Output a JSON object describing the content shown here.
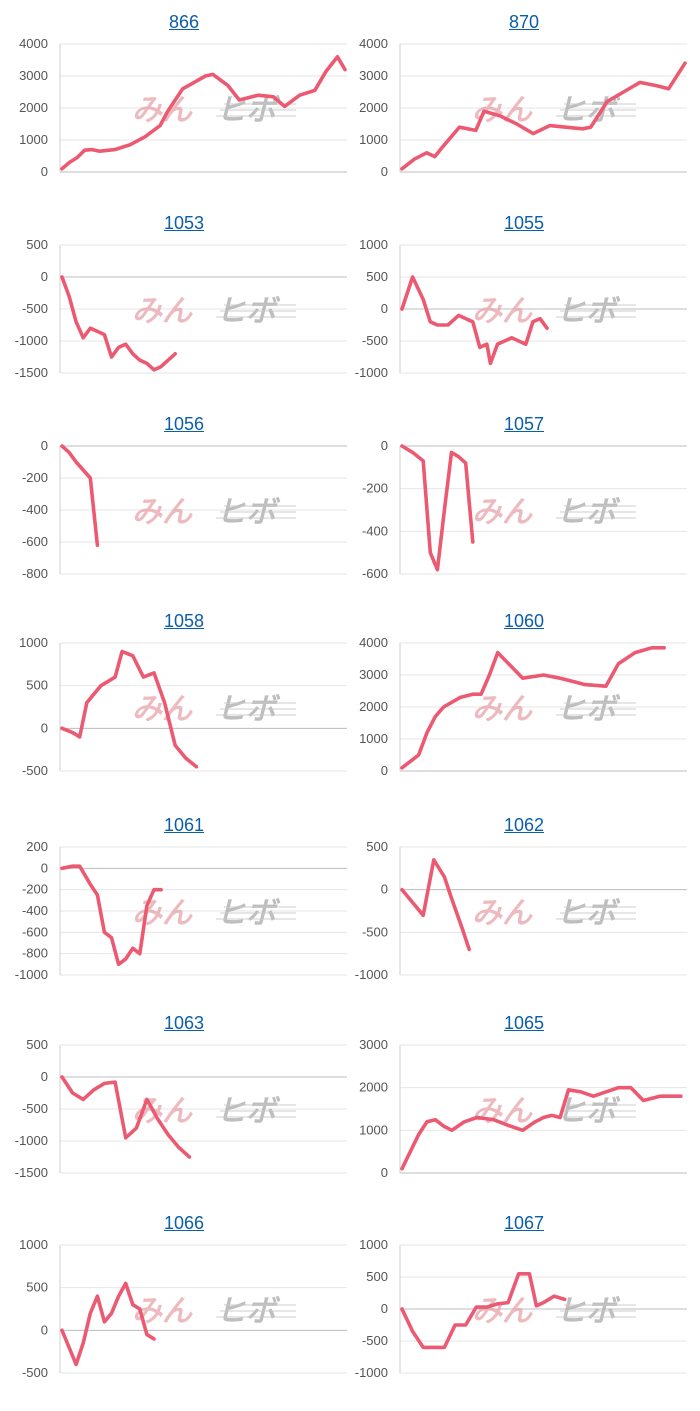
{
  "watermark": {
    "text_a": "みん",
    "text_b": "ヒ",
    "text_c": "ボ",
    "accent_color": "#e7a3aa",
    "gray_color": "#a9a9a9"
  },
  "line_color": "#ec5a72",
  "chart_data": [
    {
      "type": "line",
      "title": "866",
      "yticks": [
        4000,
        3000,
        2000,
        1000,
        0
      ],
      "ylim": [
        0,
        4000
      ],
      "x": [
        0,
        2,
        4,
        6,
        8,
        10,
        14,
        18,
        22,
        26,
        28,
        32,
        35,
        38,
        40,
        44,
        47,
        52,
        56,
        59,
        63,
        67,
        70,
        73,
        75
      ],
      "values": [
        100,
        300,
        450,
        680,
        700,
        650,
        700,
        850,
        1100,
        1450,
        1900,
        2600,
        2800,
        3000,
        3050,
        2700,
        2250,
        2400,
        2350,
        2050,
        2400,
        2550,
        3150,
        3600,
        3200
      ],
      "xmax": 75,
      "xlabel": "",
      "ylabel": ""
    },
    {
      "type": "line",
      "title": "870",
      "yticks": [
        4000,
        3000,
        2000,
        1000,
        0
      ],
      "ylim": [
        0,
        4000
      ],
      "x": [
        0,
        3,
        6,
        8,
        10,
        14,
        18,
        20,
        24,
        28,
        32,
        36,
        40,
        44,
        46,
        50,
        54,
        58,
        62,
        65,
        69
      ],
      "values": [
        100,
        400,
        600,
        480,
        800,
        1400,
        1300,
        1900,
        1750,
        1500,
        1200,
        1450,
        1400,
        1350,
        1400,
        2200,
        2500,
        2800,
        2700,
        2600,
        3400
      ],
      "xmax": 69,
      "xlabel": "",
      "ylabel": ""
    },
    {
      "type": "line",
      "title": "1053",
      "yticks": [
        500,
        0,
        -500,
        -1000,
        -1500
      ],
      "ylim": [
        -1500,
        500
      ],
      "x": [
        0,
        2,
        4,
        6,
        8,
        10,
        12,
        14,
        16,
        18,
        20,
        22,
        24,
        26,
        28,
        30,
        32
      ],
      "values": [
        0,
        -300,
        -700,
        -950,
        -800,
        -850,
        -900,
        -1250,
        -1100,
        -1050,
        -1200,
        -1300,
        -1350,
        -1450,
        -1400,
        -1300,
        -1200
      ],
      "xmax": 80,
      "xlabel": "",
      "ylabel": ""
    },
    {
      "type": "line",
      "title": "1055",
      "yticks": [
        1000,
        500,
        0,
        -500,
        -1000
      ],
      "ylim": [
        -1000,
        1000
      ],
      "x": [
        0,
        3,
        6,
        8,
        10,
        13,
        16,
        18,
        20,
        22,
        24,
        25,
        27,
        29,
        31,
        33,
        35,
        37,
        39,
        41
      ],
      "values": [
        0,
        500,
        150,
        -200,
        -250,
        -250,
        -100,
        -150,
        -200,
        -600,
        -550,
        -850,
        -550,
        -500,
        -450,
        -500,
        -550,
        -200,
        -150,
        -300
      ],
      "xmax": 80,
      "xlabel": "",
      "ylabel": ""
    },
    {
      "type": "line",
      "title": "1056",
      "yticks": [
        0,
        -200,
        -400,
        -600,
        -800
      ],
      "ylim": [
        -800,
        0
      ],
      "x": [
        0,
        2,
        4,
        6,
        8,
        10
      ],
      "values": [
        0,
        -40,
        -100,
        -150,
        -200,
        -620
      ],
      "xmax": 80,
      "xlabel": "",
      "ylabel": ""
    },
    {
      "type": "line",
      "title": "1057",
      "yticks": [
        0,
        -200,
        -400,
        -600
      ],
      "ylim": [
        -600,
        0
      ],
      "x": [
        0,
        3,
        6,
        8,
        10,
        12,
        14,
        16,
        18,
        20
      ],
      "values": [
        0,
        -30,
        -70,
        -500,
        -580,
        -300,
        -30,
        -50,
        -80,
        -450
      ],
      "xmax": 80,
      "xlabel": "",
      "ylabel": ""
    },
    {
      "type": "line",
      "title": "1058",
      "yticks": [
        1000,
        500,
        0,
        -500
      ],
      "ylim": [
        -500,
        1000
      ],
      "x": [
        0,
        3,
        5,
        7,
        9,
        11,
        13,
        15,
        17,
        20,
        23,
        26,
        29,
        32,
        35,
        38
      ],
      "values": [
        0,
        -50,
        -100,
        300,
        400,
        500,
        550,
        600,
        900,
        850,
        600,
        650,
        300,
        -200,
        -350,
        -450
      ],
      "xmax": 80,
      "xlabel": "",
      "ylabel": ""
    },
    {
      "type": "line",
      "title": "1060",
      "yticks": [
        4000,
        3000,
        2000,
        1000,
        0
      ],
      "ylim": [
        0,
        4000
      ],
      "x": [
        0,
        2,
        4,
        6,
        8,
        10,
        12,
        14,
        17,
        19,
        21,
        23,
        26,
        29,
        34,
        38,
        41,
        44,
        49,
        52,
        56,
        60,
        63
      ],
      "values": [
        100,
        300,
        500,
        1200,
        1700,
        2000,
        2150,
        2300,
        2400,
        2400,
        3000,
        3700,
        3300,
        2900,
        3000,
        2900,
        2800,
        2700,
        2650,
        3350,
        3700,
        3850,
        3850
      ],
      "xmax": 68,
      "xlabel": "",
      "ylabel": ""
    },
    {
      "type": "line",
      "title": "1061",
      "yticks": [
        200,
        0,
        -200,
        -400,
        -600,
        -800,
        -1000
      ],
      "ylim": [
        -1000,
        200
      ],
      "x": [
        0,
        3,
        5,
        8,
        10,
        12,
        14,
        16,
        18,
        20,
        22,
        24,
        26,
        28
      ],
      "values": [
        0,
        20,
        20,
        -150,
        -250,
        -600,
        -650,
        -900,
        -850,
        -750,
        -800,
        -350,
        -200,
        -200
      ],
      "xmax": 80,
      "xlabel": "",
      "ylabel": ""
    },
    {
      "type": "line",
      "title": "1062",
      "yticks": [
        500,
        0,
        -500,
        -1000
      ],
      "ylim": [
        -1000,
        500
      ],
      "x": [
        0,
        3,
        6,
        9,
        12,
        14,
        17,
        19
      ],
      "values": [
        0,
        -150,
        -300,
        350,
        150,
        -100,
        -450,
        -700
      ],
      "xmax": 80,
      "xlabel": "",
      "ylabel": ""
    },
    {
      "type": "line",
      "title": "1063",
      "yticks": [
        500,
        0,
        -500,
        -1000,
        -1500
      ],
      "ylim": [
        -1500,
        500
      ],
      "x": [
        0,
        3,
        6,
        9,
        12,
        15,
        18,
        21,
        24,
        27,
        30,
        33,
        36
      ],
      "values": [
        0,
        -250,
        -350,
        -200,
        -100,
        -80,
        -950,
        -800,
        -350,
        -650,
        -900,
        -1100,
        -1250
      ],
      "xmax": 80,
      "xlabel": "",
      "ylabel": ""
    },
    {
      "type": "line",
      "title": "1065",
      "yticks": [
        3000,
        2000,
        1000,
        0
      ],
      "ylim": [
        0,
        3000
      ],
      "x": [
        0,
        2,
        4,
        6,
        8,
        10,
        12,
        15,
        18,
        22,
        26,
        29,
        32,
        34,
        36,
        38,
        40,
        43,
        46,
        49,
        52,
        55,
        58,
        62,
        67
      ],
      "values": [
        100,
        500,
        900,
        1200,
        1250,
        1100,
        1000,
        1200,
        1300,
        1250,
        1100,
        1000,
        1200,
        1300,
        1350,
        1300,
        1950,
        1900,
        1800,
        1900,
        2000,
        2000,
        1700,
        1800,
        1800
      ],
      "xmax": 68,
      "xlabel": "",
      "ylabel": ""
    },
    {
      "type": "line",
      "title": "1066",
      "yticks": [
        1000,
        500,
        0,
        -500
      ],
      "ylim": [
        -500,
        1000
      ],
      "x": [
        0,
        2,
        4,
        6,
        8,
        10,
        12,
        14,
        16,
        18,
        20,
        22,
        24,
        26
      ],
      "values": [
        0,
        -200,
        -400,
        -150,
        200,
        400,
        100,
        200,
        400,
        550,
        300,
        250,
        -50,
        -100
      ],
      "xmax": 80,
      "xlabel": "",
      "ylabel": ""
    },
    {
      "type": "line",
      "title": "1067",
      "yticks": [
        1000,
        500,
        0,
        -500,
        -1000
      ],
      "ylim": [
        -1000,
        1000
      ],
      "x": [
        0,
        3,
        6,
        9,
        12,
        15,
        18,
        21,
        24,
        27,
        30,
        33,
        36,
        38,
        40,
        43,
        46
      ],
      "values": [
        0,
        -350,
        -600,
        -600,
        -600,
        -250,
        -250,
        30,
        30,
        80,
        100,
        550,
        550,
        50,
        100,
        200,
        150
      ],
      "xmax": 80,
      "xlabel": "",
      "ylabel": ""
    }
  ]
}
